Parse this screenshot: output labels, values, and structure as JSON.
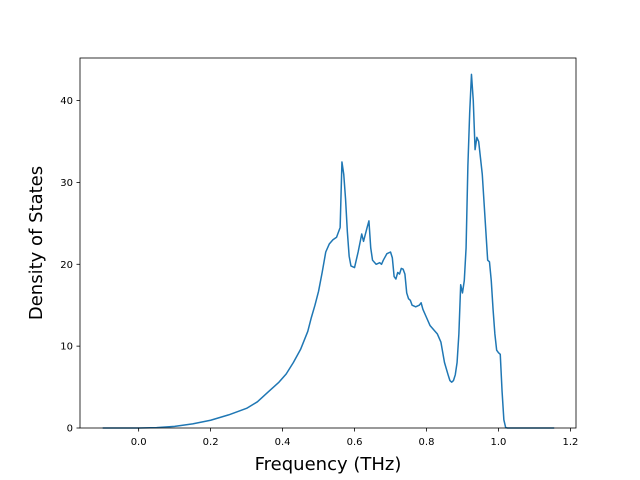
{
  "chart_data": {
    "type": "line",
    "title": "",
    "xlabel": "Frequency (THz)",
    "ylabel": "Density of States",
    "xlim": [
      -0.163,
      1.2155
    ],
    "ylim": [
      0,
      45.2
    ],
    "xticks": [
      0.0,
      0.2,
      0.4,
      0.6,
      0.8,
      1.0,
      1.2
    ],
    "xtick_labels": [
      "0.0",
      "0.2",
      "0.4",
      "0.6",
      "0.8",
      "1.0",
      "1.2"
    ],
    "yticks": [
      0,
      10,
      20,
      30,
      40
    ],
    "ytick_labels": [
      "0",
      "10",
      "20",
      "30",
      "40"
    ],
    "grid": false,
    "legend": null,
    "series": [
      {
        "color": "#1f77b4",
        "x": [
          -0.1,
          0.0,
          0.05,
          0.1,
          0.15,
          0.2,
          0.25,
          0.3,
          0.33,
          0.36,
          0.39,
          0.41,
          0.43,
          0.45,
          0.47,
          0.48,
          0.49,
          0.5,
          0.51,
          0.52,
          0.53,
          0.54,
          0.55,
          0.56,
          0.565,
          0.57,
          0.575,
          0.58,
          0.585,
          0.59,
          0.6,
          0.61,
          0.62,
          0.625,
          0.635,
          0.64,
          0.645,
          0.65,
          0.66,
          0.67,
          0.675,
          0.68,
          0.69,
          0.7,
          0.705,
          0.71,
          0.715,
          0.72,
          0.725,
          0.73,
          0.735,
          0.74,
          0.745,
          0.75,
          0.755,
          0.76,
          0.77,
          0.78,
          0.785,
          0.79,
          0.8,
          0.81,
          0.82,
          0.83,
          0.84,
          0.85,
          0.86,
          0.865,
          0.87,
          0.875,
          0.88,
          0.885,
          0.89,
          0.895,
          0.9,
          0.905,
          0.91,
          0.915,
          0.92,
          0.925,
          0.93,
          0.935,
          0.94,
          0.945,
          0.95,
          0.955,
          0.96,
          0.965,
          0.97,
          0.975,
          0.98,
          0.985,
          0.99,
          0.995,
          1.0,
          1.005,
          1.01,
          1.015,
          1.02,
          1.025,
          1.03,
          1.035,
          1.04,
          1.045,
          1.05,
          1.055,
          1.1,
          1.155
        ],
        "y": [
          0,
          0,
          0.05,
          0.2,
          0.5,
          0.95,
          1.6,
          2.4,
          3.2,
          4.4,
          5.6,
          6.6,
          8.0,
          9.6,
          11.8,
          13.5,
          15.0,
          16.7,
          19.0,
          21.5,
          22.5,
          23.0,
          23.3,
          24.5,
          32.5,
          31.0,
          28.0,
          24.0,
          21.0,
          19.8,
          19.6,
          21.5,
          23.7,
          22.8,
          24.5,
          25.3,
          22.0,
          20.5,
          20.0,
          20.2,
          20.0,
          20.5,
          21.3,
          21.5,
          20.8,
          18.5,
          18.2,
          19.0,
          18.8,
          19.5,
          19.4,
          18.8,
          16.5,
          15.8,
          15.6,
          15.0,
          14.8,
          15.0,
          15.3,
          14.5,
          13.5,
          12.5,
          12.0,
          11.5,
          10.5,
          8.0,
          6.5,
          5.8,
          5.6,
          5.8,
          6.5,
          8.0,
          11.5,
          17.5,
          16.5,
          18.0,
          22.0,
          32.0,
          38.5,
          43.2,
          40.0,
          34.0,
          35.5,
          35.0,
          33.0,
          31.0,
          27.5,
          24.0,
          20.5,
          20.3,
          18.0,
          14.5,
          11.5,
          9.5,
          9.2,
          9.0,
          4.5,
          1.0,
          0.05,
          0,
          0,
          0,
          0,
          0,
          0,
          0,
          0,
          0
        ]
      }
    ]
  }
}
